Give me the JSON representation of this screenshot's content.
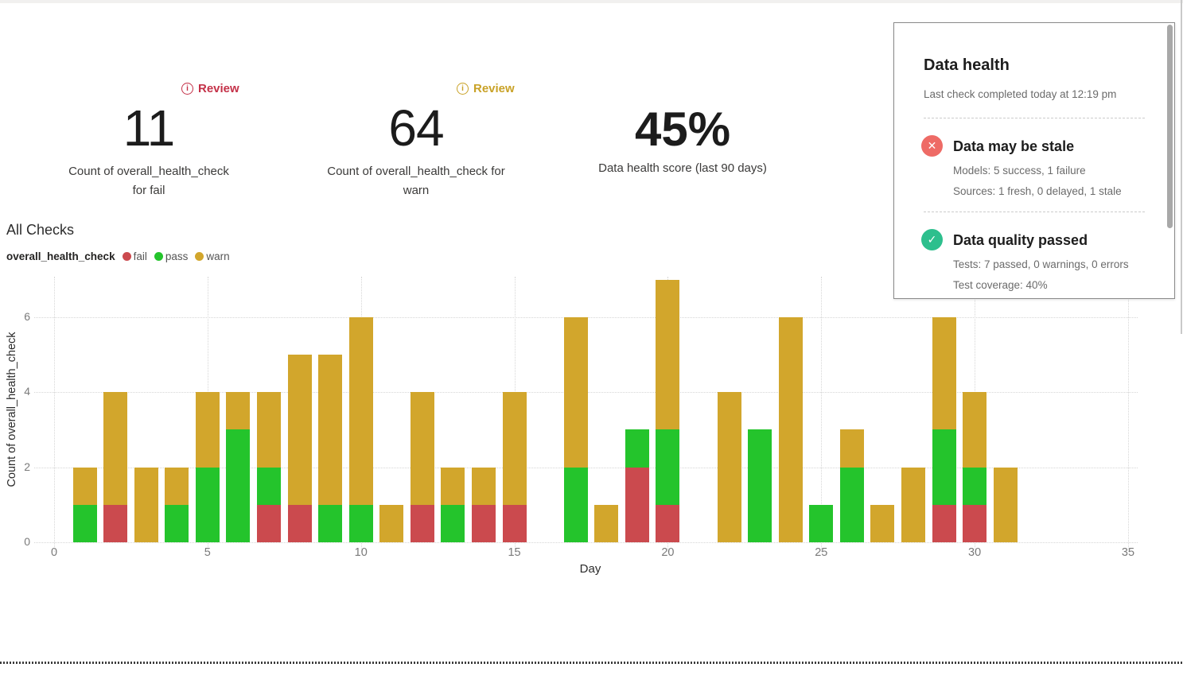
{
  "kpis": [
    {
      "value": "11",
      "label_line1": "Count of overall_health_check",
      "label_line2": "for fail",
      "review_label": "Review",
      "review_color": "#c43148"
    },
    {
      "value": "64",
      "label_line1": "Count of overall_health_check for",
      "label_line2": "warn",
      "review_label": "Review",
      "review_color": "#c9a227"
    },
    {
      "value": "45%",
      "label": "Data health score (last 90 days)"
    }
  ],
  "chart_title": "All Checks",
  "chart_data": {
    "type": "stacked-bar",
    "legend_title": "overall_health_check",
    "legend": [
      {
        "label": "fail",
        "color": "#cb4a4e"
      },
      {
        "label": "pass",
        "color": "#24c42c"
      },
      {
        "label": "warn",
        "color": "#d2a62c"
      }
    ],
    "xlabel": "Day",
    "ylabel": "Count of overall_health_check",
    "x_ticks": [
      0,
      5,
      10,
      15,
      20,
      25,
      30,
      35
    ],
    "y_ticks": [
      0,
      2,
      4,
      6
    ],
    "xlim": [
      0,
      35.7
    ],
    "ylim": [
      0,
      7.1
    ],
    "grid": true,
    "days": [
      1,
      2,
      3,
      4,
      5,
      6,
      7,
      8,
      9,
      10,
      11,
      12,
      13,
      14,
      15,
      16,
      17,
      18,
      19,
      20,
      21,
      22,
      23,
      24,
      25,
      26,
      27,
      28,
      29,
      30,
      31
    ],
    "series": [
      {
        "name": "fail",
        "values": [
          0,
          1,
          0,
          0,
          0,
          0,
          1,
          1,
          0,
          0,
          0,
          1,
          0,
          1,
          1,
          0,
          0,
          0,
          2,
          1,
          0,
          0,
          0,
          0,
          0,
          0,
          0,
          0,
          1,
          1,
          0
        ]
      },
      {
        "name": "pass",
        "values": [
          1,
          0,
          0,
          1,
          2,
          3,
          1,
          0,
          1,
          1,
          0,
          0,
          1,
          0,
          0,
          0,
          2,
          0,
          1,
          2,
          0,
          0,
          3,
          0,
          1,
          2,
          0,
          0,
          2,
          1,
          0
        ]
      },
      {
        "name": "warn",
        "values": [
          1,
          3,
          2,
          1,
          2,
          1,
          2,
          4,
          4,
          5,
          1,
          3,
          1,
          1,
          3,
          0,
          4,
          1,
          0,
          4,
          0,
          4,
          0,
          6,
          0,
          1,
          1,
          2,
          3,
          2,
          2
        ]
      }
    ]
  },
  "panel": {
    "title": "Data health",
    "subtitle": "Last check completed today at 12:19 pm",
    "items": [
      {
        "title": "Data may be stale",
        "icon": "✕",
        "icon_bg": "#ee6b66",
        "lines": [
          "Models: 5 success, 1 failure",
          "Sources: 1 fresh, 0 delayed, 1 stale"
        ]
      },
      {
        "title": "Data quality passed",
        "icon": "✓",
        "icon_bg": "#2dbf8d",
        "lines": [
          "Tests: 7 passed, 0 warnings, 0 errors",
          "Test coverage: 40%"
        ]
      }
    ]
  }
}
